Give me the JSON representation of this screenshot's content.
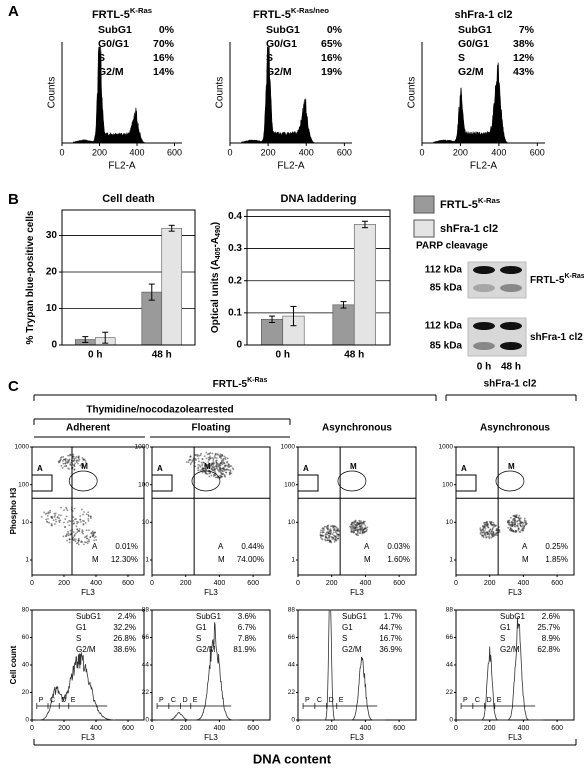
{
  "panel_labels": {
    "a": "A",
    "b": "B",
    "c": "C"
  },
  "panel_a": {
    "x_label": "FL2-A",
    "y_label": "Counts",
    "xlim": [
      0,
      640
    ],
    "xticks": [
      0,
      200,
      400,
      600
    ],
    "plots": [
      {
        "title": "FRTL-5",
        "title_sup": "K-Ras",
        "stats": [
          [
            "SubG1",
            "0%"
          ],
          [
            "G0/G1",
            "70%"
          ],
          [
            "S",
            "16%"
          ],
          [
            "G2/M",
            "14%"
          ]
        ]
      },
      {
        "title": "FRTL-5",
        "title_sup": "K-Ras/neo",
        "stats": [
          [
            "SubG1",
            "0%"
          ],
          [
            "G0/G1",
            "65%"
          ],
          [
            "S",
            "16%"
          ],
          [
            "G2/M",
            "19%"
          ]
        ]
      },
      {
        "title": "shFra-1 cl2",
        "stats": [
          [
            "SubG1",
            "7%"
          ],
          [
            "G0/G1",
            "38%"
          ],
          [
            "S",
            "12%"
          ],
          [
            "G2/M",
            "43%"
          ]
        ]
      }
    ]
  },
  "chart_data": [
    {
      "type": "bar",
      "title": "Cell death",
      "y_label": "% Trypan blue-positive cells",
      "categories": [
        "0 h",
        "48 h"
      ],
      "ylim": [
        0,
        37
      ],
      "yticks": [
        0,
        10,
        20,
        30
      ],
      "grid": true,
      "series": [
        {
          "color": "#9a9a9a",
          "values": [
            1.5,
            14.5
          ],
          "errors": [
            0.8,
            2.2
          ]
        },
        {
          "color": "#e4e4e4",
          "values": [
            2,
            32
          ],
          "errors": [
            1.5,
            0.8
          ]
        }
      ]
    },
    {
      "type": "bar",
      "title": "DNA laddering",
      "y_label": [
        {
          "text": "Optical units (A"
        },
        {
          "text": "405",
          "sub": true
        },
        {
          "text": "-A"
        },
        {
          "text": "490",
          "sub": true
        },
        {
          "text": ")"
        }
      ],
      "categories": [
        "0 h",
        "48 h"
      ],
      "ylim": [
        0,
        0.42
      ],
      "yticks": [
        0,
        0.1,
        0.2,
        0.3,
        0.4
      ],
      "grid": true,
      "series": [
        {
          "name": "FRTL-5",
          "name_sup": "K-Ras",
          "color": "#9a9a9a",
          "values": [
            0.08,
            0.125
          ],
          "errors": [
            0.01,
            0.01
          ]
        },
        {
          "name": "shFra-1 cl2",
          "color": "#e4e4e4",
          "values": [
            0.09,
            0.375
          ],
          "errors": [
            0.03,
            0.01
          ]
        }
      ]
    }
  ],
  "parp": {
    "title": "PARP cleavage",
    "blots": [
      {
        "label": "FRTL-5",
        "label_sup": "K-Ras",
        "sizes": [
          "112 kDa",
          "85 kDa"
        ]
      },
      {
        "label": "shFra-1 cl2",
        "sizes": [
          "112 kDa",
          "85 kDa"
        ]
      }
    ],
    "lanes": [
      "0 h",
      "48 h"
    ]
  },
  "panel_c": {
    "group_titles": [
      {
        "text": "FRTL-5",
        "sup": "K-Ras"
      },
      {
        "text": "shFra-1 cl2"
      }
    ],
    "subgroup_title": "Thymidine/nocodazolearrested",
    "scatter": {
      "y_label": "Phospho H3",
      "x_label": "FL3",
      "log_y": true,
      "ylim": [
        0.4,
        1000
      ],
      "yticks": [
        1,
        10,
        100,
        1000
      ],
      "xlim": [
        0,
        700
      ],
      "xticks": [
        0,
        200,
        400,
        600
      ],
      "gate_labels": [
        "A",
        "M"
      ]
    },
    "hist": {
      "y_label": "Cell count",
      "x_label": "FL3",
      "xlim": [
        0,
        700
      ],
      "xticks": [
        0,
        200,
        400,
        600
      ],
      "gates": [
        "P",
        "C",
        "D",
        "E"
      ]
    },
    "x_title": "DNA content",
    "columns": [
      {
        "title": "Adherent",
        "scatter_stats": [
          [
            "A",
            "0.01%"
          ],
          [
            "M",
            "12.30%"
          ]
        ],
        "hist_ylim": [
          0,
          80
        ],
        "hist_yticks": [
          0,
          20,
          40,
          60,
          80
        ],
        "hist_stats": [
          [
            "SubG1",
            "2.4%"
          ],
          [
            "G1",
            "32.2%"
          ],
          [
            "S",
            "26.8%"
          ],
          [
            "G2/M",
            "38.6%"
          ]
        ]
      },
      {
        "title": "Floating",
        "scatter_stats": [
          [
            "A",
            "0.44%"
          ],
          [
            "M",
            "74.00%"
          ]
        ],
        "hist_ylim": [
          0,
          88
        ],
        "hist_yticks": [
          0,
          22,
          44,
          66,
          88
        ],
        "hist_stats": [
          [
            "SubG1",
            "3.6%"
          ],
          [
            "G1",
            "6.7%"
          ],
          [
            "S",
            "7.8%"
          ],
          [
            "G2/M",
            "81.9%"
          ]
        ]
      },
      {
        "title": "Asynchronous",
        "scatter_stats": [
          [
            "A",
            "0.03%"
          ],
          [
            "M",
            "1.60%"
          ]
        ],
        "hist_ylim": [
          0,
          88
        ],
        "hist_yticks": [
          0,
          22,
          44,
          66,
          88
        ],
        "hist_stats": [
          [
            "SubG1",
            "1.7%"
          ],
          [
            "G1",
            "44.7%"
          ],
          [
            "S",
            "16.7%"
          ],
          [
            "G2/M",
            "36.9%"
          ]
        ]
      },
      {
        "title": "Asynchronous",
        "scatter_stats": [
          [
            "A",
            "0.25%"
          ],
          [
            "M",
            "1.85%"
          ]
        ],
        "hist_ylim": [
          0,
          88
        ],
        "hist_yticks": [
          0,
          22,
          44,
          66,
          88
        ],
        "hist_stats": [
          [
            "SubG1",
            "2.6%"
          ],
          [
            "G1",
            "25.7%"
          ],
          [
            "S",
            "8.9%"
          ],
          [
            "G2/M",
            "62.8%"
          ]
        ]
      }
    ]
  }
}
